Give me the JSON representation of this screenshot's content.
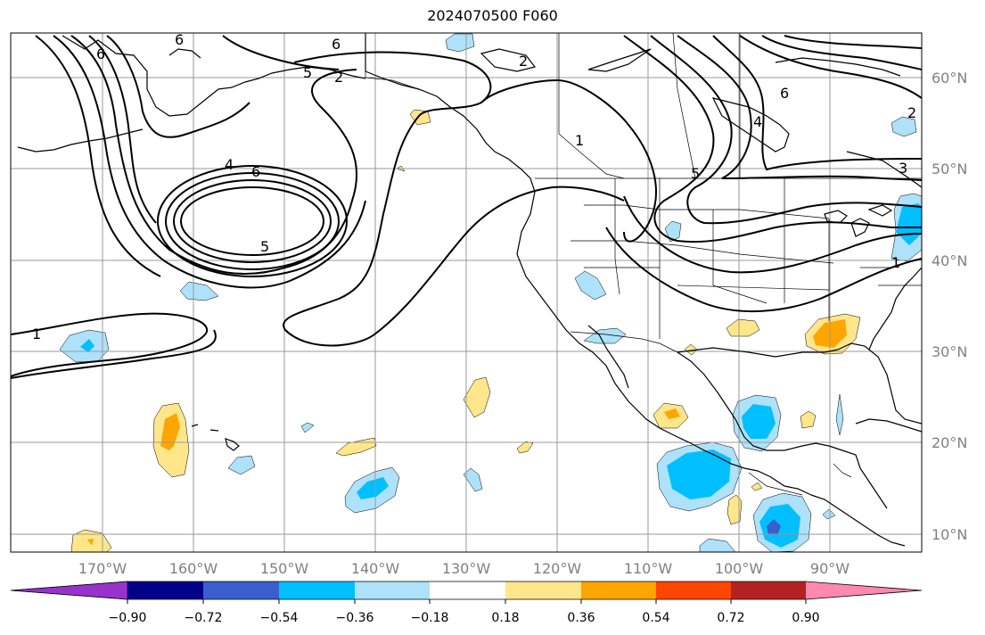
{
  "title": "2024070500 F060",
  "map": {
    "region": "North Pacific / North America",
    "lon_labels": [
      "170°W",
      "160°W",
      "150°W",
      "140°W",
      "130°W",
      "120°W",
      "110°W",
      "100°W",
      "90°W"
    ],
    "lat_labels": [
      "60°N",
      "50°N",
      "40°N",
      "30°N",
      "20°N",
      "10°N"
    ],
    "contour_labels": [
      "6",
      "5",
      "4",
      "3",
      "2",
      "1"
    ]
  },
  "colorbar": {
    "tick_labels": [
      "−0.90",
      "−0.72",
      "−0.54",
      "−0.36",
      "−0.18",
      "0.18",
      "0.36",
      "0.54",
      "0.72",
      "0.90"
    ],
    "colors": [
      "#9932cc",
      "#00008b",
      "#3a5fcd",
      "#00bfff",
      "#aee1fa",
      "#ffffff",
      "#ffe68a",
      "#ffa500",
      "#ff4500",
      "#b22222",
      "#ff88b0"
    ]
  },
  "colors": {
    "anomaly_light_blue": "#aee1fa",
    "anomaly_blue": "#00bfff",
    "anomaly_dark_blue": "#3a5fcd",
    "anomaly_light_yellow": "#ffe68a",
    "anomaly_orange": "#ffa500",
    "grid": "#999999",
    "contour": "#000000"
  }
}
